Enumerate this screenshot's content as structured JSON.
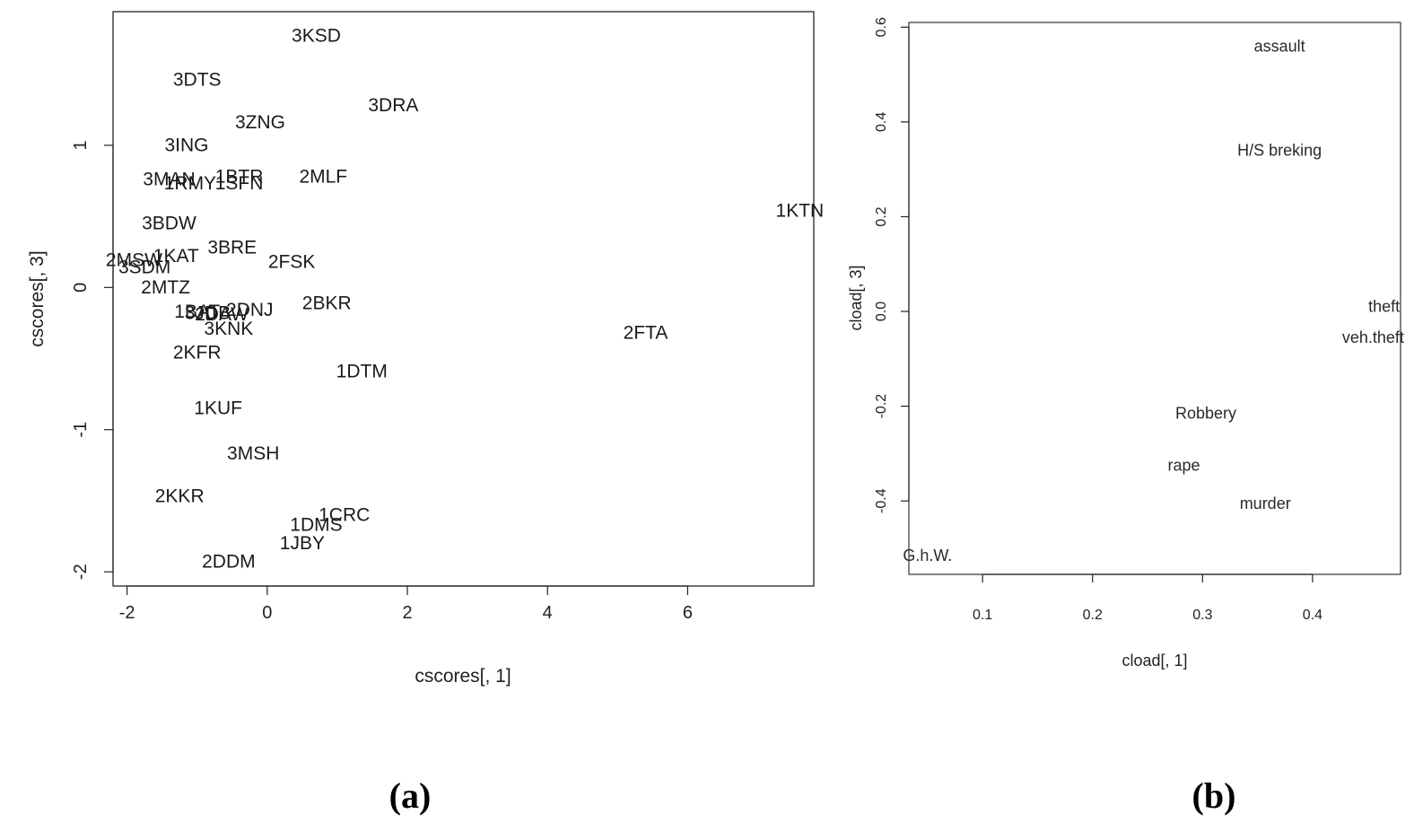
{
  "chart_data": [
    {
      "type": "scatter",
      "xlabel": "cscores[, 1]",
      "ylabel": "cscores[, 3]",
      "xlim": [
        -2.2,
        7.8
      ],
      "ylim": [
        -2.1,
        1.94
      ],
      "xticks": [
        -2,
        0,
        2,
        4,
        6
      ],
      "yticks": [
        -2,
        -1,
        0,
        1
      ],
      "points": [
        {
          "label": "3KSD",
          "x": 0.7,
          "y": 1.77
        },
        {
          "label": "3DTS",
          "x": -1.0,
          "y": 1.46
        },
        {
          "label": "3DRA",
          "x": 1.8,
          "y": 1.28
        },
        {
          "label": "3ZNG",
          "x": -0.1,
          "y": 1.16
        },
        {
          "label": "3ING",
          "x": -1.15,
          "y": 1.0
        },
        {
          "label": "1BTR",
          "x": -0.4,
          "y": 0.78
        },
        {
          "label": "2MLF",
          "x": 0.8,
          "y": 0.78
        },
        {
          "label": "3MAN",
          "x": -1.4,
          "y": 0.76
        },
        {
          "label": "1RMY",
          "x": -1.1,
          "y": 0.73
        },
        {
          "label": "1SFN",
          "x": -0.4,
          "y": 0.73
        },
        {
          "label": "1KTN",
          "x": 7.6,
          "y": 0.54
        },
        {
          "label": "3BDW",
          "x": -1.4,
          "y": 0.45
        },
        {
          "label": "3BRE",
          "x": -0.5,
          "y": 0.28
        },
        {
          "label": "1KAT",
          "x": -1.3,
          "y": 0.22
        },
        {
          "label": "2MSW",
          "x": -1.9,
          "y": 0.19
        },
        {
          "label": "2FSK",
          "x": 0.35,
          "y": 0.18
        },
        {
          "label": "3SDM",
          "x": -1.75,
          "y": 0.14
        },
        {
          "label": "2MTZ",
          "x": -1.45,
          "y": 0.0
        },
        {
          "label": "2BKR",
          "x": 0.85,
          "y": -0.11
        },
        {
          "label": "2DNJ",
          "x": -0.25,
          "y": -0.16
        },
        {
          "label": "1BAT",
          "x": -1.0,
          "y": -0.17
        },
        {
          "label": "3JDB",
          "x": -0.85,
          "y": -0.18
        },
        {
          "label": "2DAW",
          "x": -0.65,
          "y": -0.19
        },
        {
          "label": "3KNK",
          "x": -0.55,
          "y": -0.29
        },
        {
          "label": "2FTA",
          "x": 5.4,
          "y": -0.32
        },
        {
          "label": "2KFR",
          "x": -1.0,
          "y": -0.46
        },
        {
          "label": "1DTM",
          "x": 1.35,
          "y": -0.59
        },
        {
          "label": "1KUF",
          "x": -0.7,
          "y": -0.85
        },
        {
          "label": "3MSH",
          "x": -0.2,
          "y": -1.17
        },
        {
          "label": "2KKR",
          "x": -1.25,
          "y": -1.47
        },
        {
          "label": "1CRC",
          "x": 1.1,
          "y": -1.6
        },
        {
          "label": "1DMS",
          "x": 0.7,
          "y": -1.67
        },
        {
          "label": "1JBY",
          "x": 0.5,
          "y": -1.8
        },
        {
          "label": "2DDM",
          "x": -0.55,
          "y": -1.93
        }
      ]
    },
    {
      "type": "scatter",
      "xlabel": "cload[, 1]",
      "ylabel": "cload[, 3]",
      "xlim": [
        0.033,
        0.48
      ],
      "ylim": [
        -0.555,
        0.61
      ],
      "xticks": [
        0.1,
        0.2,
        0.3,
        0.4
      ],
      "yticks": [
        -0.4,
        -0.2,
        0.0,
        0.2,
        0.4,
        0.6
      ],
      "points": [
        {
          "label": "assault",
          "x": 0.37,
          "y": 0.56
        },
        {
          "label": "H/S breking",
          "x": 0.37,
          "y": 0.34
        },
        {
          "label": "theft",
          "x": 0.465,
          "y": 0.01
        },
        {
          "label": "veh.theft",
          "x": 0.455,
          "y": -0.055
        },
        {
          "label": "Robbery",
          "x": 0.303,
          "y": -0.215
        },
        {
          "label": "rape",
          "x": 0.283,
          "y": -0.325
        },
        {
          "label": "murder",
          "x": 0.357,
          "y": -0.405
        },
        {
          "label": "G.h.W.",
          "x": 0.05,
          "y": -0.515
        }
      ]
    }
  ],
  "captions": [
    "(a)",
    "(b)"
  ]
}
